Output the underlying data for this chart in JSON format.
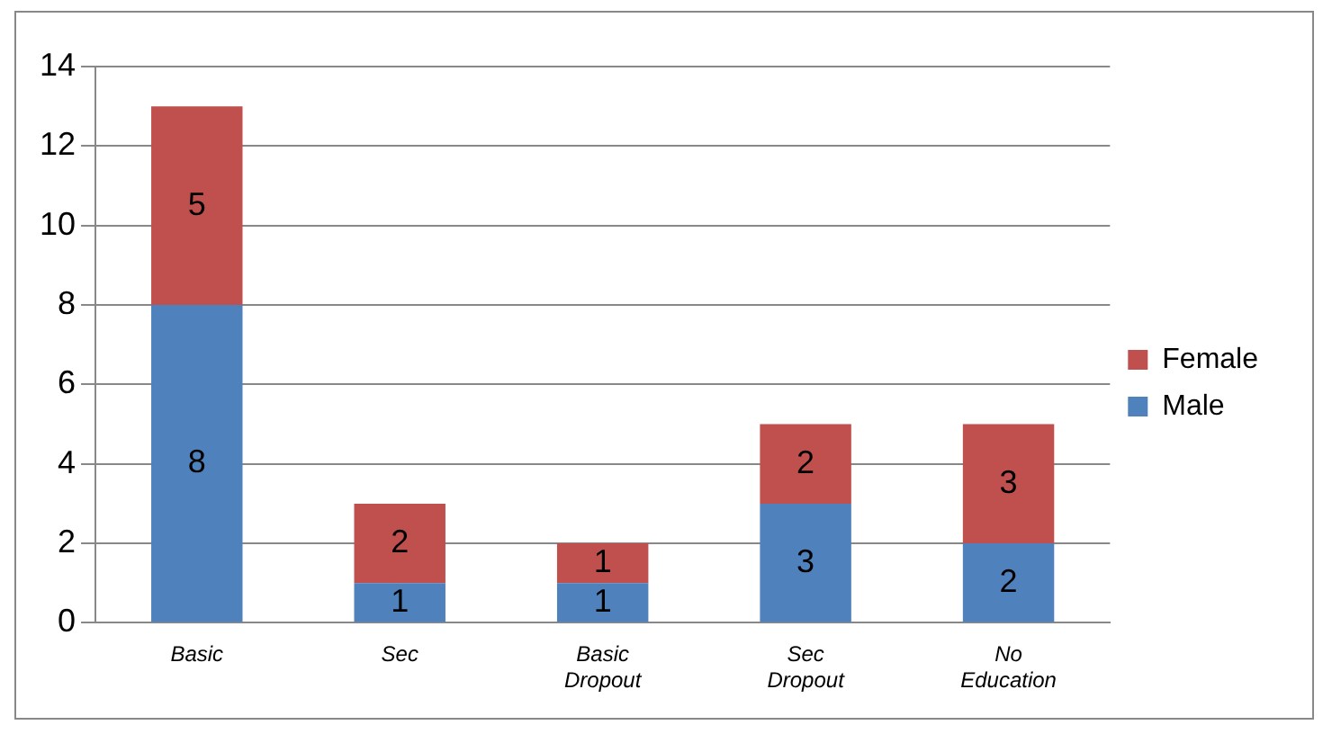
{
  "chart_data": {
    "type": "bar",
    "stacked": true,
    "categories": [
      "Basic",
      "Sec",
      "Basic Dropout",
      "Sec Dropout",
      "No Education"
    ],
    "series": [
      {
        "name": "Male",
        "color": "#4f81bd",
        "values": [
          8,
          1,
          1,
          3,
          2
        ]
      },
      {
        "name": "Female",
        "color": "#c0504d",
        "values": [
          5,
          2,
          1,
          2,
          3
        ]
      }
    ],
    "ylim": [
      0,
      14
    ],
    "yticks": [
      0,
      2,
      4,
      6,
      8,
      10,
      12,
      14
    ],
    "grid": "y",
    "legend": "right",
    "data_labels": true
  }
}
